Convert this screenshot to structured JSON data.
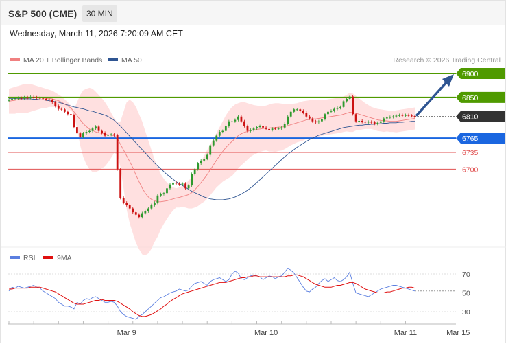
{
  "header": {
    "instrument": "S&P 500 (CME)",
    "timeframe": "30 MIN",
    "datetime": "Wednesday, March 11, 2026 7:20:09 AM CET"
  },
  "price_panel": {
    "legend": [
      {
        "name": "MA 20 + Bollinger Bands",
        "color": "#f08080"
      },
      {
        "name": "MA 50",
        "color": "#2f5592"
      }
    ],
    "credit": "Research © 2026 Trading Central",
    "levels": [
      {
        "value": 6900,
        "label": "6900",
        "kind": "resistance",
        "color": "#4f9a00"
      },
      {
        "value": 6850,
        "label": "6850",
        "kind": "resistance",
        "color": "#4f9a00"
      },
      {
        "value": 6810,
        "label": "6810",
        "kind": "last",
        "color": "#333333"
      },
      {
        "value": 6765,
        "label": "6765",
        "kind": "pivot",
        "color": "#1a66e0"
      },
      {
        "value": 6735,
        "label": "6735",
        "kind": "support",
        "color": "#e05050"
      },
      {
        "value": 6700,
        "label": "6700",
        "kind": "support",
        "color": "#e05050"
      }
    ],
    "colors": {
      "up": "#2e9a2e",
      "down": "#cc1111",
      "band": "#ffd6d6",
      "arrow": "#2f5592"
    }
  },
  "rsi_panel": {
    "legend": [
      {
        "name": "RSI",
        "color": "#5b7fe0"
      },
      {
        "name": "9MA",
        "color": "#e01010"
      }
    ],
    "levels": [
      {
        "value": 70,
        "label": "70"
      },
      {
        "value": 50,
        "label": "50"
      },
      {
        "value": 30,
        "label": "30"
      }
    ]
  },
  "xaxis": {
    "labels": [
      {
        "label": "Mar 9",
        "pos": 38
      },
      {
        "label": "Mar 10",
        "pos": 83
      },
      {
        "label": "Mar 11",
        "pos": 128
      },
      {
        "label": "Mar 15",
        "pos": 145
      }
    ]
  },
  "chart_data": {
    "type": "candlestick",
    "ylim": [
      6550,
      6900
    ],
    "close": [
      6845,
      6847,
      6848,
      6849,
      6848,
      6850,
      6849,
      6851,
      6850,
      6849,
      6848,
      6847,
      6846,
      6844,
      6840,
      6832,
      6826,
      6825,
      6820,
      6815,
      6813,
      6788,
      6775,
      6768,
      6775,
      6778,
      6780,
      6785,
      6789,
      6780,
      6776,
      6770,
      6772,
      6773,
      6771,
      6700,
      6640,
      6630,
      6625,
      6618,
      6610,
      6605,
      6600,
      6608,
      6612,
      6618,
      6625,
      6630,
      6645,
      6648,
      6650,
      6660,
      6668,
      6672,
      6670,
      6668,
      6670,
      6660,
      6666,
      6690,
      6700,
      6712,
      6718,
      6722,
      6730,
      6750,
      6760,
      6770,
      6778,
      6780,
      6790,
      6800,
      6800,
      6803,
      6810,
      6800,
      6790,
      6780,
      6782,
      6785,
      6788,
      6790,
      6787,
      6784,
      6782,
      6785,
      6784,
      6785,
      6787,
      6795,
      6810,
      6820,
      6825,
      6825,
      6822,
      6818,
      6810,
      6806,
      6800,
      6798,
      6800,
      6805,
      6815,
      6820,
      6822,
      6826,
      6828,
      6830,
      6842,
      6847,
      6852,
      6815,
      6800,
      6801,
      6799,
      6798,
      6799,
      6798,
      6795,
      6797,
      6800,
      6806,
      6808,
      6809,
      6810,
      6812,
      6813,
      6812,
      6813,
      6812,
      6811,
      6810
    ],
    "ma20": [
      6842,
      6843,
      6844,
      6846,
      6847,
      6848,
      6848,
      6849,
      6849,
      6849,
      6849,
      6849,
      6848,
      6848,
      6847,
      6845,
      6843,
      6840,
      6836,
      6832,
      6828,
      6820,
      6812,
      6803,
      6795,
      6789,
      6784,
      6781,
      6778,
      6776,
      6775,
      6773,
      6772,
      6771,
      6770,
      6764,
      6752,
      6740,
      6728,
      6716,
      6703,
      6688,
      6674,
      6661,
      6650,
      6642,
      6637,
      6634,
      6632,
      6632,
      6633,
      6634,
      6636,
      6638,
      6640,
      6641,
      6643,
      6645,
      6647,
      6651,
      6657,
      6664,
      6672,
      6680,
      6689,
      6699,
      6709,
      6719,
      6728,
      6737,
      6745,
      6752,
      6758,
      6764,
      6770,
      6774,
      6777,
      6779,
      6781,
      6782,
      6783,
      6784,
      6785,
      6786,
      6786,
      6787,
      6787,
      6788,
      6788,
      6789,
      6791,
      6793,
      6795,
      6797,
      6799,
      6801,
      6803,
      6804,
      6805,
      6805,
      6806,
      6807,
      6808,
      6809,
      6810,
      6811,
      6812,
      6813,
      6815,
      6817,
      6819,
      6818,
      6817,
      6815,
      6813,
      6811,
      6809,
      6807,
      6805,
      6803,
      6802,
      6801,
      6801,
      6800,
      6800,
      6800,
      6801,
      6802,
      6803,
      6804,
      6805,
      6806
    ],
    "upper": [
      6868,
      6870,
      6872,
      6874,
      6876,
      6878,
      6878,
      6878,
      6876,
      6874,
      6872,
      6870,
      6868,
      6866,
      6864,
      6860,
      6856,
      6852,
      6846,
      6840,
      6833,
      6825,
      6840,
      6855,
      6865,
      6868,
      6870,
      6868,
      6862,
      6855,
      6848,
      6840,
      6830,
      6818,
      6806,
      6798,
      6800,
      6820,
      6840,
      6845,
      6840,
      6830,
      6815,
      6800,
      6780,
      6760,
      6740,
      6720,
      6705,
      6690,
      6680,
      6672,
      6666,
      6662,
      6660,
      6662,
      6665,
      6670,
      6676,
      6684,
      6694,
      6705,
      6716,
      6728,
      6740,
      6752,
      6764,
      6776,
      6788,
      6800,
      6812,
      6822,
      6830,
      6835,
      6838,
      6840,
      6840,
      6838,
      6836,
      6834,
      6833,
      6832,
      6832,
      6833,
      6835,
      6837,
      6838,
      6838,
      6837,
      6836,
      6836,
      6836,
      6837,
      6838,
      6840,
      6842,
      6843,
      6844,
      6844,
      6844,
      6844,
      6844,
      6845,
      6846,
      6847,
      6848,
      6849,
      6850,
      6852,
      6855,
      6860,
      6858,
      6853,
      6848,
      6843,
      6838,
      6834,
      6830,
      6828,
      6826,
      6825,
      6824,
      6823,
      6822,
      6822,
      6823,
      6824,
      6825,
      6826,
      6827,
      6828,
      6829
    ],
    "lower": [
      6816,
      6816,
      6816,
      6818,
      6818,
      6818,
      6818,
      6820,
      6822,
      6824,
      6826,
      6828,
      6828,
      6830,
      6830,
      6830,
      6830,
      6828,
      6826,
      6824,
      6823,
      6815,
      6785,
      6750,
      6725,
      6710,
      6700,
      6694,
      6694,
      6697,
      6702,
      6706,
      6714,
      6724,
      6734,
      6730,
      6704,
      6660,
      6616,
      6587,
      6566,
      6546,
      6533,
      6522,
      6520,
      6524,
      6534,
      6548,
      6559,
      6574,
      6586,
      6596,
      6606,
      6614,
      6620,
      6620,
      6621,
      6620,
      6618,
      6618,
      6620,
      6623,
      6628,
      6632,
      6638,
      6646,
      6654,
      6662,
      6668,
      6674,
      6678,
      6682,
      6686,
      6693,
      6702,
      6708,
      6714,
      6720,
      6726,
      6730,
      6733,
      6736,
      6738,
      6739,
      6737,
      6737,
      6736,
      6738,
      6739,
      6742,
      6746,
      6750,
      6753,
      6756,
      6758,
      6760,
      6763,
      6764,
      6766,
      6766,
      6768,
      6770,
      6771,
      6772,
      6773,
      6774,
      6775,
      6776,
      6778,
      6779,
      6778,
      6778,
      6781,
      6782,
      6783,
      6784,
      6784,
      6784,
      6782,
      6780,
      6779,
      6778,
      6779,
      6778,
      6778,
      6777,
      6778,
      6779,
      6780,
      6781,
      6782,
      6783
    ],
    "ma50": [
      6848,
      6848,
      6848,
      6848,
      6847,
      6847,
      6847,
      6847,
      6846,
      6846,
      6845,
      6845,
      6844,
      6843,
      6842,
      6841,
      6840,
      6838,
      6836,
      6834,
      6832,
      6830,
      6829,
      6827,
      6826,
      6824,
      6822,
      6821,
      6819,
      6817,
      6815,
      6813,
      6810,
      6806,
      6802,
      6796,
      6790,
      6783,
      6776,
      6769,
      6762,
      6755,
      6748,
      6741,
      6734,
      6727,
      6720,
      6713,
      6707,
      6701,
      6695,
      6689,
      6684,
      6679,
      6674,
      6670,
      6666,
      6662,
      6658,
      6654,
      6651,
      6648,
      6645,
      6642,
      6640,
      6638,
      6637,
      6636,
      6636,
      6636,
      6637,
      6638,
      6640,
      6642,
      6645,
      6648,
      6652,
      6656,
      6661,
      6666,
      6672,
      6678,
      6684,
      6690,
      6696,
      6702,
      6708,
      6714,
      6720,
      6726,
      6731,
      6736,
      6741,
      6746,
      6750,
      6754,
      6758,
      6762,
      6765,
      6768,
      6771,
      6773,
      6775,
      6777,
      6779,
      6781,
      6783,
      6785,
      6787,
      6788,
      6789,
      6790,
      6791,
      6792,
      6792,
      6793,
      6793,
      6794,
      6794,
      6795,
      6795,
      6796,
      6796,
      6797,
      6797,
      6797,
      6798,
      6798,
      6799,
      6799,
      6800,
      6800
    ],
    "rsi": [
      52,
      56,
      55,
      57,
      56,
      55,
      56,
      57,
      58,
      56,
      55,
      52,
      50,
      48,
      46,
      44,
      40,
      38,
      36,
      36,
      35,
      33,
      40,
      38,
      42,
      44,
      43,
      45,
      46,
      44,
      42,
      40,
      40,
      41,
      40,
      36,
      30,
      27,
      25,
      24,
      23,
      22,
      25,
      27,
      30,
      33,
      36,
      39,
      42,
      45,
      46,
      48,
      50,
      51,
      52,
      54,
      53,
      52,
      53,
      57,
      60,
      61,
      62,
      60,
      58,
      62,
      64,
      65,
      66,
      64,
      62,
      64,
      70,
      73,
      71,
      65,
      64,
      66,
      68,
      69,
      68,
      67,
      64,
      66,
      68,
      67,
      65,
      67,
      68,
      72,
      76,
      74,
      71,
      66,
      61,
      56,
      52,
      51,
      54,
      56,
      60,
      63,
      65,
      62,
      64,
      66,
      63,
      62,
      64,
      67,
      72,
      60,
      50,
      49,
      48,
      47,
      46,
      48,
      50,
      52,
      54,
      55,
      56,
      57,
      58,
      58,
      57,
      56,
      55,
      54,
      53,
      52
    ],
    "rsi_ma": [
      54,
      54,
      55,
      55,
      55,
      55,
      55,
      56,
      56,
      56,
      56,
      55,
      54,
      53,
      52,
      51,
      49,
      47,
      45,
      43,
      41,
      39,
      38,
      38,
      38,
      39,
      40,
      41,
      42,
      42,
      43,
      42,
      42,
      42,
      42,
      41,
      39,
      37,
      35,
      33,
      30,
      28,
      26,
      25,
      25,
      26,
      27,
      29,
      31,
      33,
      36,
      38,
      41,
      43,
      45,
      47,
      49,
      50,
      51,
      52,
      53,
      54,
      55,
      56,
      57,
      58,
      59,
      60,
      61,
      61,
      61,
      62,
      63,
      64,
      65,
      66,
      66,
      67,
      67,
      68,
      68,
      67,
      67,
      67,
      67,
      67,
      67,
      67,
      67,
      67,
      68,
      68,
      69,
      69,
      68,
      67,
      65,
      63,
      61,
      59,
      58,
      57,
      56,
      56,
      56,
      57,
      58,
      58,
      59,
      60,
      61,
      61,
      60,
      58,
      56,
      54,
      53,
      52,
      51,
      50,
      50,
      50,
      51,
      51,
      52,
      53,
      54,
      55,
      55,
      56,
      56,
      55
    ]
  }
}
